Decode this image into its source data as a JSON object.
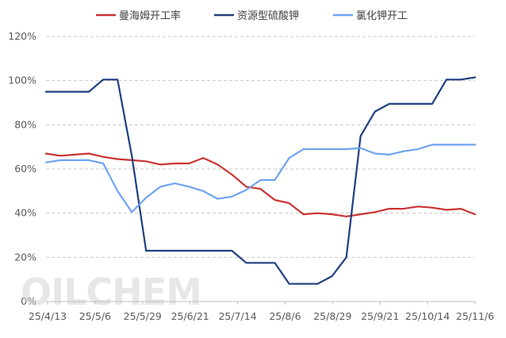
{
  "chart_data": {
    "type": "line",
    "title": "",
    "xlabel": "",
    "ylabel": "",
    "ylim": [
      0,
      120
    ],
    "y_ticks": [
      "0%",
      "20%",
      "40%",
      "60%",
      "80%",
      "100%",
      "120%"
    ],
    "x_tick_labels": [
      "25/4/13",
      "25/5/6",
      "25/5/29",
      "25/6/21",
      "25/7/14",
      "25/8/6",
      "25/8/29",
      "25/9/21",
      "25/10/14",
      "25/11/6"
    ],
    "grid": "horizontal-dashed",
    "legend_position": "top",
    "watermark": "OILCHEM",
    "series": [
      {
        "name": "曼海姆开工率",
        "color": "#cc3333",
        "values": [
          67,
          66,
          66.5,
          67,
          65.5,
          64.5,
          64,
          63.5,
          62,
          62.5,
          62.5,
          65,
          62,
          57.5,
          52,
          51,
          46,
          44.5,
          39.5,
          40,
          39.5,
          38.5,
          39.5,
          40.5,
          42,
          42,
          43,
          42.5,
          41.5,
          42,
          39.5
        ]
      },
      {
        "name": "资源型硫酸钾",
        "color": "#1f3f7f",
        "values": [
          95,
          95,
          95,
          95,
          100.5,
          100.5,
          66,
          23,
          23,
          23,
          23,
          23,
          23,
          23,
          17.5,
          17.5,
          17.5,
          8,
          8,
          8,
          11.5,
          20,
          75,
          86,
          89.5,
          89.5,
          89.5,
          89.5,
          100.5,
          100.5,
          101.5
        ]
      },
      {
        "name": "氯化钾开工",
        "color": "#6fa3ef",
        "values": [
          63,
          64,
          64,
          64,
          62.5,
          50,
          40.5,
          47,
          52,
          53.5,
          52,
          50,
          46.5,
          47.5,
          50.5,
          55,
          55,
          65,
          69,
          69,
          69,
          69,
          69.5,
          67,
          66.5,
          68,
          69,
          71,
          71,
          71,
          71
        ]
      }
    ]
  }
}
